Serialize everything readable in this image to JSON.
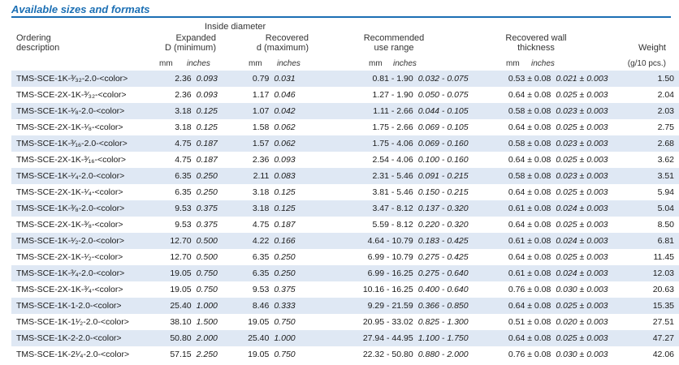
{
  "title": "Available sizes and formats",
  "headers": {
    "inside_diameter": "Inside diameter",
    "ordering": [
      "Ordering",
      "description"
    ],
    "expanded": [
      "Expanded",
      "D (minimum)"
    ],
    "recovered": [
      "Recovered",
      "d (maximum)"
    ],
    "recommended": [
      "Recommended",
      "use range"
    ],
    "wall": [
      "Recovered wall",
      "thickness"
    ],
    "weight": [
      "Weight",
      "(g/10 pcs.)"
    ]
  },
  "units": {
    "mm": "mm",
    "inches": "inches"
  },
  "rows": [
    [
      "TMS-SCE-1K-³⁄₃₂-2.0-<color>",
      "2.36",
      "0.093",
      "0.79",
      "0.031",
      "0.81 - 1.90",
      "0.032 - 0.075",
      "0.53 ± 0.08",
      "0.021 ± 0.003",
      "1.50"
    ],
    [
      "TMS-SCE-2X-1K-³⁄₃₂-<color>",
      "2.36",
      "0.093",
      "1.17",
      "0.046",
      "1.27 - 1.90",
      "0.050 - 0.075",
      "0.64 ± 0.08",
      "0.025 ± 0.003",
      "2.04"
    ],
    [
      "TMS-SCE-1K-¹⁄₈-2.0-<color>",
      "3.18",
      "0.125",
      "1.07",
      "0.042",
      "1.11 - 2.66",
      "0.044 - 0.105",
      "0.58 ± 0.08",
      "0.023 ± 0.003",
      "2.03"
    ],
    [
      "TMS-SCE-2X-1K-¹⁄₈-<color>",
      "3.18",
      "0.125",
      "1.58",
      "0.062",
      "1.75 - 2.66",
      "0.069 - 0.105",
      "0.64 ± 0.08",
      "0.025 ± 0.003",
      "2.75"
    ],
    [
      "TMS-SCE-1K-³⁄₁₆-2.0-<color>",
      "4.75",
      "0.187",
      "1.57",
      "0.062",
      "1.75 - 4.06",
      "0.069 - 0.160",
      "0.58 ± 0.08",
      "0.023 ± 0.003",
      "2.68"
    ],
    [
      "TMS-SCE-2X-1K-³⁄₁₆-<color>",
      "4.75",
      "0.187",
      "2.36",
      "0.093",
      "2.54 - 4.06",
      "0.100 - 0.160",
      "0.64 ± 0.08",
      "0.025 ± 0.003",
      "3.62"
    ],
    [
      "TMS-SCE-1K-¹⁄₄-2.0-<color>",
      "6.35",
      "0.250",
      "2.11",
      "0.083",
      "2.31 - 5.46",
      "0.091 - 0.215",
      "0.58 ± 0.08",
      "0.023 ± 0.003",
      "3.51"
    ],
    [
      "TMS-SCE-2X-1K-¹⁄₄-<color>",
      "6.35",
      "0.250",
      "3.18",
      "0.125",
      "3.81 - 5.46",
      "0.150 - 0.215",
      "0.64 ± 0.08",
      "0.025 ± 0.003",
      "5.94"
    ],
    [
      "TMS-SCE-1K-³⁄₈-2.0-<color>",
      "9.53",
      "0.375",
      "3.18",
      "0.125",
      "3.47 - 8.12",
      "0.137 - 0.320",
      "0.61 ± 0.08",
      "0.024 ± 0.003",
      "5.04"
    ],
    [
      "TMS-SCE-2X-1K-³⁄₈-<color>",
      "9.53",
      "0.375",
      "4.75",
      "0.187",
      "5.59 - 8.12",
      "0.220 - 0.320",
      "0.64 ± 0.08",
      "0.025 ± 0.003",
      "8.50"
    ],
    [
      "TMS-SCE-1K-¹⁄₂-2.0-<color>",
      "12.70",
      "0.500",
      "4.22",
      "0.166",
      "4.64 - 10.79",
      "0.183 - 0.425",
      "0.61 ± 0.08",
      "0.024 ± 0.003",
      "6.81"
    ],
    [
      "TMS-SCE-2X-1K-¹⁄₂-<color>",
      "12.70",
      "0.500",
      "6.35",
      "0.250",
      "6.99 - 10.79",
      "0.275 - 0.425",
      "0.64 ± 0.08",
      "0.025 ± 0.003",
      "11.45"
    ],
    [
      "TMS-SCE-1K-³⁄₄-2.0-<color>",
      "19.05",
      "0.750",
      "6.35",
      "0.250",
      "6.99 - 16.25",
      "0.275 - 0.640",
      "0.61 ± 0.08",
      "0.024 ± 0.003",
      "12.03"
    ],
    [
      "TMS-SCE-2X-1K-³⁄₄-<color>",
      "19.05",
      "0.750",
      "9.53",
      "0.375",
      "10.16 - 16.25",
      "0.400 - 0.640",
      "0.76 ± 0.08",
      "0.030 ± 0.003",
      "20.63"
    ],
    [
      "TMS-SCE-1K-1-2.0-<color>",
      "25.40",
      "1.000",
      "8.46",
      "0.333",
      "9.29 - 21.59",
      "0.366 - 0.850",
      "0.64 ± 0.08",
      "0.025 ± 0.003",
      "15.35"
    ],
    [
      "TMS-SCE-1K-1¹⁄₂-2.0-<color>",
      "38.10",
      "1.500",
      "19.05",
      "0.750",
      "20.95 - 33.02",
      "0.825 - 1.300",
      "0.51 ± 0.08",
      "0.020 ± 0.003",
      "27.51"
    ],
    [
      "TMS-SCE-1K-2-2.0-<color>",
      "50.80",
      "2.000",
      "25.40",
      "1.000",
      "27.94 - 44.95",
      "1.100 - 1.750",
      "0.64 ± 0.08",
      "0.025 ± 0.003",
      "47.27"
    ],
    [
      "TMS-SCE-1K-2¹⁄₄-2.0-<color>",
      "57.15",
      "2.250",
      "19.05",
      "0.750",
      "22.32 - 50.80",
      "0.880 - 2.000",
      "0.76 ± 0.08",
      "0.030 ± 0.003",
      "42.06"
    ]
  ]
}
